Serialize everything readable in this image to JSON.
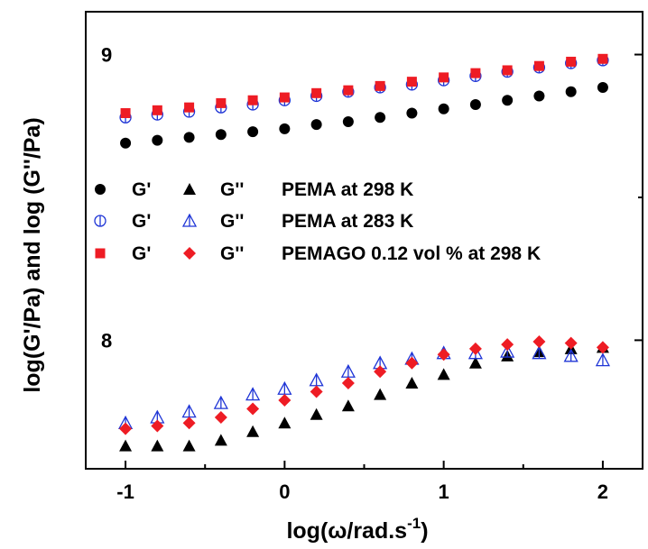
{
  "chart_data": {
    "type": "scatter",
    "xlabel_parts": [
      "log(ω/rad.s",
      "-1",
      ")"
    ],
    "ylabel": "log(G'/Pa) and log (G''/Pa)",
    "xlim": [
      -1.25,
      2.25
    ],
    "ylim": [
      7.55,
      9.15
    ],
    "x_ticks": [
      -1,
      0,
      1,
      2
    ],
    "x_tick_labels": [
      "-1",
      "0",
      "1",
      "2"
    ],
    "y_ticks": [
      8,
      9
    ],
    "y_tick_labels": [
      "8",
      "9"
    ],
    "legend": {
      "placement": "center-left",
      "rows": [
        {
          "g1_label": "G'",
          "g2_label": "G''",
          "text": "PEMA at 298 K"
        },
        {
          "g1_label": "G'",
          "g2_label": "G''",
          "text": "PEMA at 283 K"
        },
        {
          "g1_label": "G'",
          "g2_label": "G''",
          "text": "PEMAGO 0.12 vol % at 298 K"
        }
      ]
    },
    "x": [
      -1.0,
      -0.8,
      -0.6,
      -0.4,
      -0.2,
      0.0,
      0.2,
      0.4,
      0.6,
      0.8,
      1.0,
      1.2,
      1.4,
      1.6,
      1.8,
      2.0
    ],
    "series": [
      {
        "marker": "filled-circle",
        "color": "#000000",
        "values": [
          8.69,
          8.7,
          8.71,
          8.72,
          8.73,
          8.74,
          8.755,
          8.765,
          8.78,
          8.795,
          8.81,
          8.825,
          8.84,
          8.855,
          8.87,
          8.885
        ]
      },
      {
        "marker": "filled-triangle",
        "color": "#000000",
        "values": [
          7.63,
          7.63,
          7.63,
          7.65,
          7.68,
          7.71,
          7.74,
          7.77,
          7.81,
          7.85,
          7.88,
          7.92,
          7.945,
          7.96,
          7.97,
          7.975
        ]
      },
      {
        "marker": "open-circle",
        "color": "#1f35d6",
        "values": [
          8.78,
          8.79,
          8.8,
          8.815,
          8.825,
          8.84,
          8.855,
          8.87,
          8.885,
          8.895,
          8.91,
          8.925,
          8.94,
          8.955,
          8.97,
          8.98
        ]
      },
      {
        "marker": "open-triangle",
        "color": "#1f35d6",
        "values": [
          7.71,
          7.73,
          7.75,
          7.78,
          7.81,
          7.83,
          7.86,
          7.89,
          7.92,
          7.935,
          7.955,
          7.955,
          7.96,
          7.955,
          7.945,
          7.93
        ]
      },
      {
        "marker": "filled-square",
        "color": "#ee1c24",
        "values": [
          8.795,
          8.805,
          8.815,
          8.83,
          8.84,
          8.85,
          8.865,
          8.875,
          8.89,
          8.905,
          8.92,
          8.935,
          8.945,
          8.96,
          8.975,
          8.985
        ]
      },
      {
        "marker": "filled-diamond",
        "color": "#ee1c24",
        "values": [
          7.69,
          7.7,
          7.71,
          7.73,
          7.76,
          7.79,
          7.82,
          7.85,
          7.89,
          7.92,
          7.95,
          7.97,
          7.985,
          7.995,
          7.99,
          7.975
        ]
      }
    ]
  }
}
